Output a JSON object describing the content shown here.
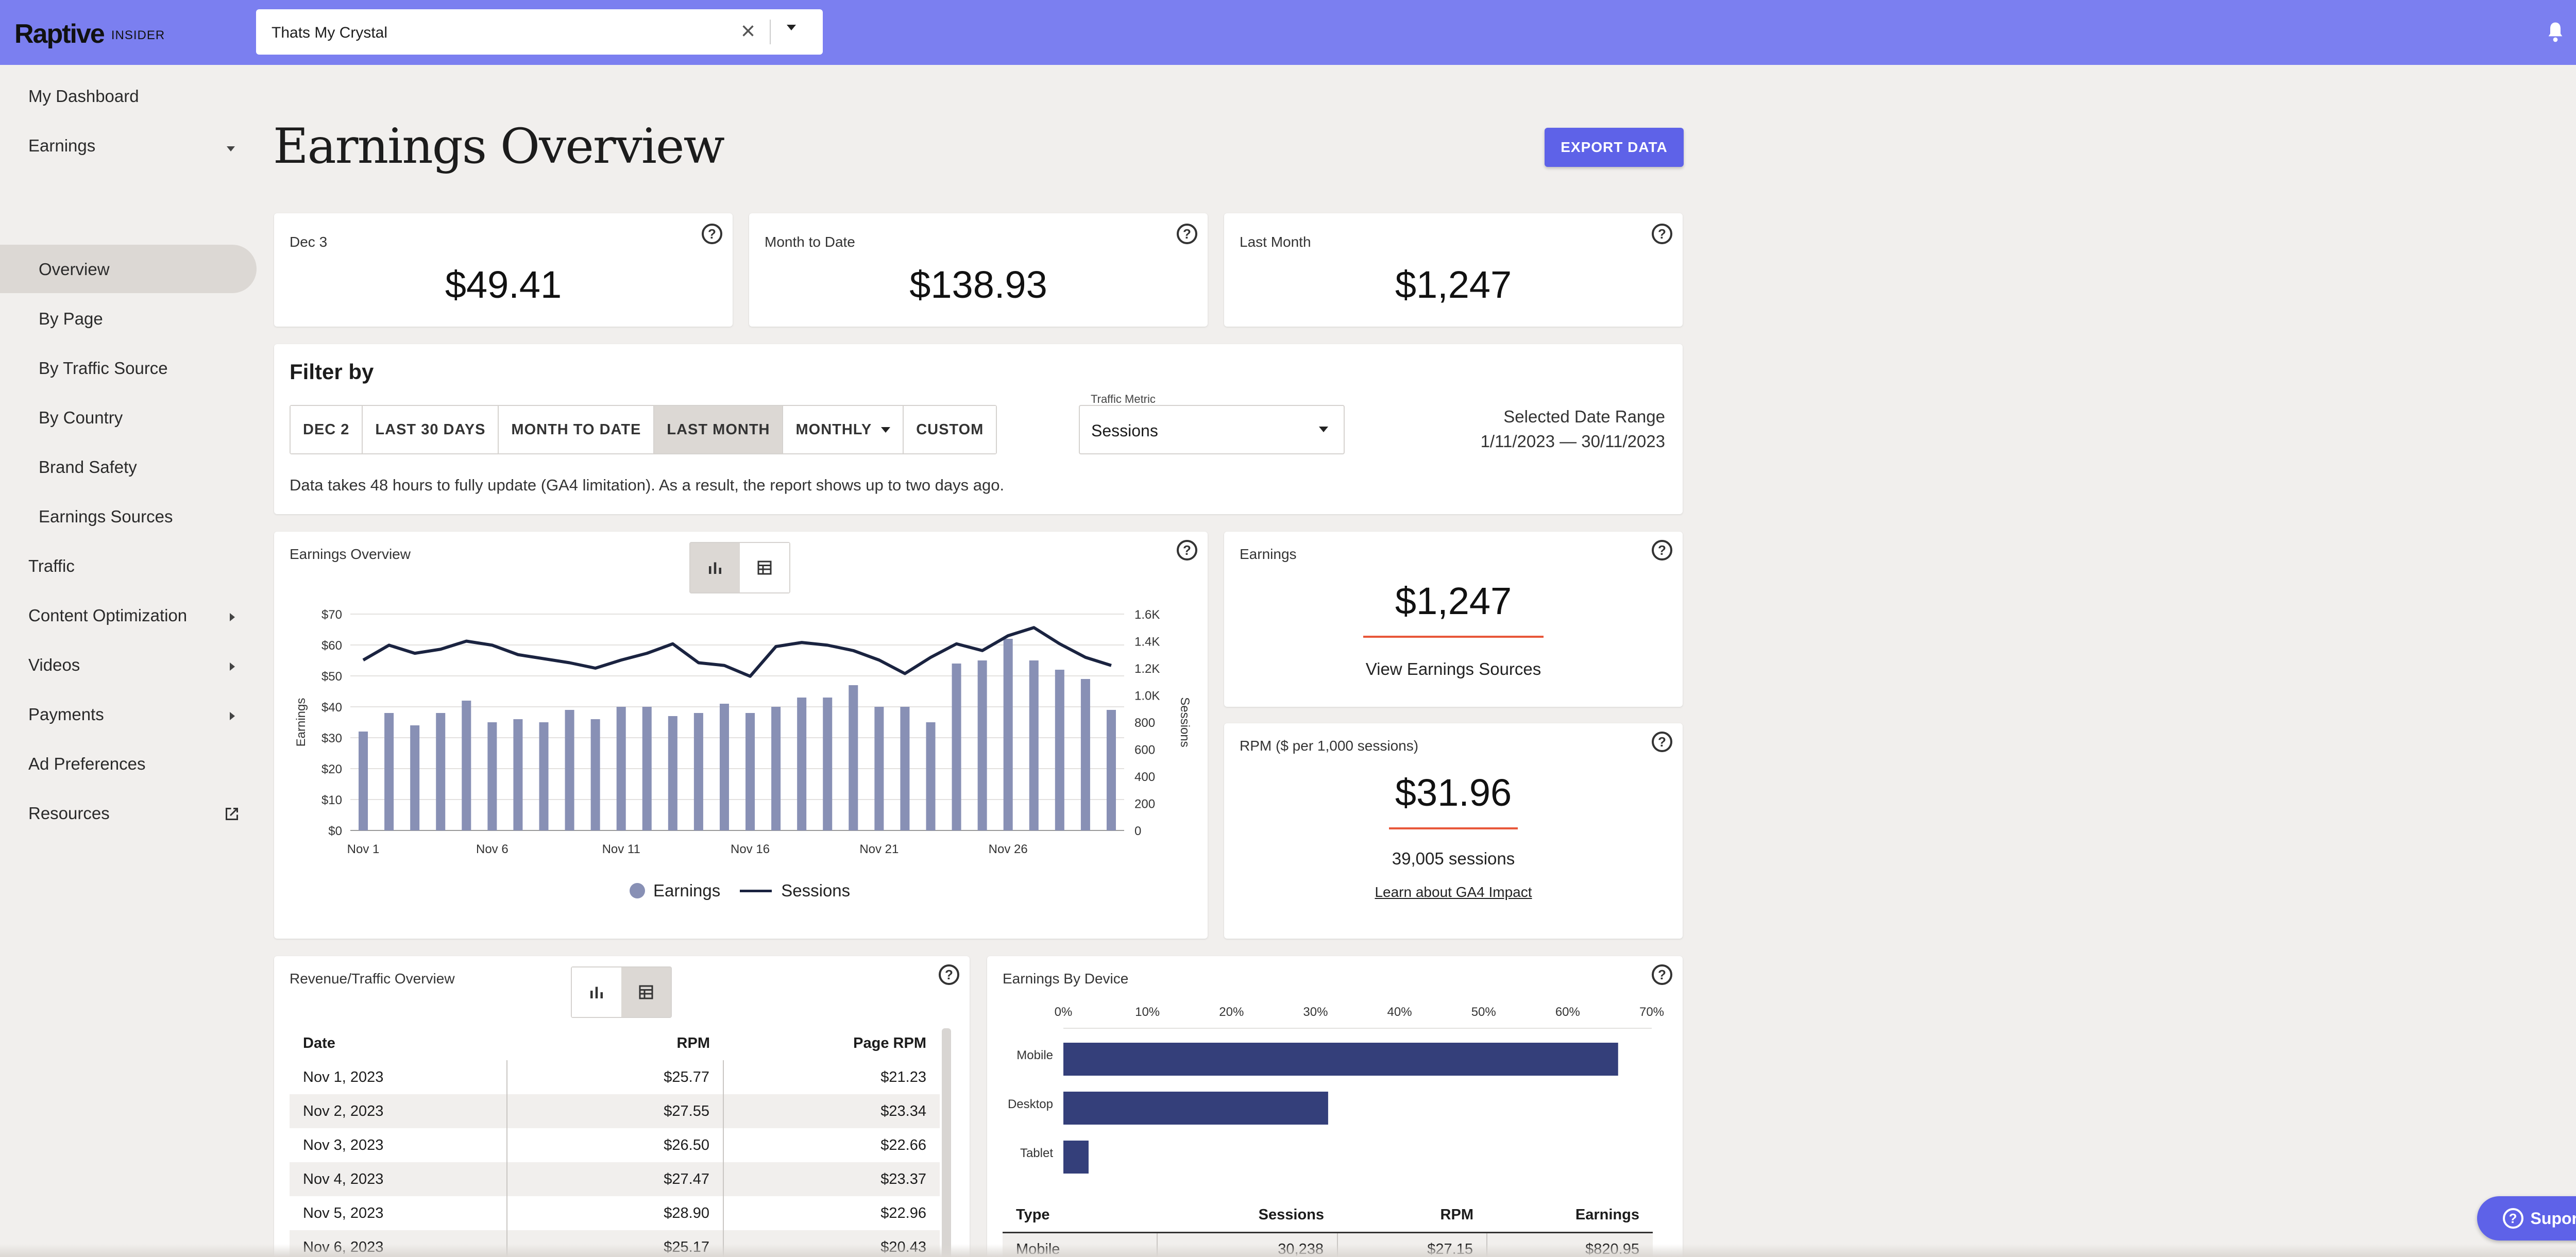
{
  "header": {
    "logo": "Raptive",
    "logo_sub": "INSIDER",
    "site_select_value": "Thats My Crystal"
  },
  "sidebar": {
    "items": [
      {
        "label": "My Dashboard"
      },
      {
        "label": "Earnings"
      },
      {
        "label": "Overview"
      },
      {
        "label": "By Page"
      },
      {
        "label": "By Traffic Source"
      },
      {
        "label": "By Country"
      },
      {
        "label": "Brand Safety"
      },
      {
        "label": "Earnings Sources"
      },
      {
        "label": "Traffic"
      },
      {
        "label": "Content Optimization"
      },
      {
        "label": "Videos"
      },
      {
        "label": "Payments"
      },
      {
        "label": "Ad Preferences"
      },
      {
        "label": "Resources"
      }
    ]
  },
  "main": {
    "title": "Earnings Overview",
    "export_label": "EXPORT DATA",
    "stats": [
      {
        "label": "Dec 3",
        "value": "$49.41"
      },
      {
        "label": "Month to Date",
        "value": "$138.93"
      },
      {
        "label": "Last Month",
        "value": "$1,247"
      }
    ],
    "filter": {
      "title": "Filter by",
      "buttons": [
        "DEC 2",
        "LAST 30 DAYS",
        "MONTH TO DATE",
        "LAST MONTH",
        "MONTHLY",
        "CUSTOM"
      ],
      "active_button": "LAST MONTH",
      "traffic_metric_label": "Traffic Metric",
      "traffic_metric_value": "Sessions",
      "date_range_label": "Selected Date Range",
      "date_range_value": "1/11/2023 — 30/11/2023",
      "note": "Data takes 48 hours to fully update (GA4 limitation). As a result, the report shows up to two days ago."
    },
    "earnings_chart_card": {
      "title": "Earnings Overview",
      "legend_earnings": "Earnings",
      "legend_sessions": "Sessions"
    },
    "earnings_card": {
      "label": "Earnings",
      "value": "$1,247",
      "link": "View Earnings Sources"
    },
    "rpm_card": {
      "label": "RPM ($ per 1,000 sessions)",
      "value": "$31.96",
      "sessions": "39,005 sessions",
      "link": "Learn about GA4 Impact"
    },
    "revenue_table": {
      "title": "Revenue/Traffic Overview",
      "headers": [
        "Date",
        "RPM",
        "Page RPM"
      ],
      "rows": [
        [
          "Nov 1, 2023",
          "$25.77",
          "$21.23"
        ],
        [
          "Nov 2, 2023",
          "$27.55",
          "$23.34"
        ],
        [
          "Nov 3, 2023",
          "$26.50",
          "$22.66"
        ],
        [
          "Nov 4, 2023",
          "$27.47",
          "$23.37"
        ],
        [
          "Nov 5, 2023",
          "$28.90",
          "$22.96"
        ],
        [
          "Nov 6, 2023",
          "$25.17",
          "$20.43"
        ]
      ]
    },
    "device_card": {
      "title": "Earnings By Device",
      "table_headers": [
        "Type",
        "Sessions",
        "RPM",
        "Earnings"
      ],
      "table_rows": [
        [
          "Mobile",
          "30,238",
          "$27.15",
          "$820.95"
        ]
      ]
    }
  },
  "support_label": "Suporte",
  "colors": {
    "accent": "#7b7ff0",
    "button": "#5e62e8",
    "bar": "#8890b5",
    "line": "#1a2340",
    "device_bar": "#343f7a",
    "divider": "#e8573a"
  },
  "chart_data": [
    {
      "type": "bar",
      "title": "Earnings Overview",
      "xlabel": "",
      "ylabel": "Earnings",
      "y2label": "Sessions",
      "x_tick_labels": [
        "Nov 1",
        "Nov 6",
        "Nov 11",
        "Nov 16",
        "Nov 21",
        "Nov 26"
      ],
      "y_ticks": [
        "$0",
        "$10",
        "$20",
        "$30",
        "$40",
        "$50",
        "$60",
        "$70"
      ],
      "y2_ticks": [
        "0",
        "200",
        "400",
        "600",
        "800",
        "1.0K",
        "1.2K",
        "1.4K",
        "1.6K"
      ],
      "ylim": [
        0,
        70
      ],
      "y2lim": [
        0,
        1600
      ],
      "categories": [
        "Nov 1",
        "Nov 2",
        "Nov 3",
        "Nov 4",
        "Nov 5",
        "Nov 6",
        "Nov 7",
        "Nov 8",
        "Nov 9",
        "Nov 10",
        "Nov 11",
        "Nov 12",
        "Nov 13",
        "Nov 14",
        "Nov 15",
        "Nov 16",
        "Nov 17",
        "Nov 18",
        "Nov 19",
        "Nov 20",
        "Nov 21",
        "Nov 22",
        "Nov 23",
        "Nov 24",
        "Nov 25",
        "Nov 26",
        "Nov 27",
        "Nov 28",
        "Nov 29",
        "Nov 30"
      ],
      "series": [
        {
          "name": "Earnings",
          "type": "bar",
          "axis": "left",
          "values": [
            32,
            38,
            34,
            38,
            42,
            35,
            36,
            35,
            39,
            36,
            40,
            40,
            37,
            38,
            41,
            38,
            40,
            43,
            43,
            47,
            40,
            40,
            35,
            54,
            55,
            62,
            55,
            52,
            49,
            39
          ]
        },
        {
          "name": "Sessions",
          "type": "line",
          "axis": "right",
          "values": [
            1260,
            1370,
            1310,
            1340,
            1400,
            1370,
            1300,
            1270,
            1240,
            1200,
            1260,
            1310,
            1380,
            1240,
            1220,
            1140,
            1360,
            1390,
            1370,
            1330,
            1260,
            1160,
            1280,
            1380,
            1330,
            1440,
            1500,
            1380,
            1280,
            1220
          ]
        }
      ],
      "grid": true,
      "legend": "bottom"
    },
    {
      "type": "bar",
      "orientation": "horizontal",
      "title": "Earnings By Device",
      "categories": [
        "Mobile",
        "Desktop",
        "Tablet"
      ],
      "values": [
        66,
        31.5,
        3
      ],
      "x_ticks": [
        "0%",
        "10%",
        "20%",
        "30%",
        "40%",
        "50%",
        "60%",
        "70%"
      ],
      "xlim": [
        0,
        70
      ]
    }
  ]
}
